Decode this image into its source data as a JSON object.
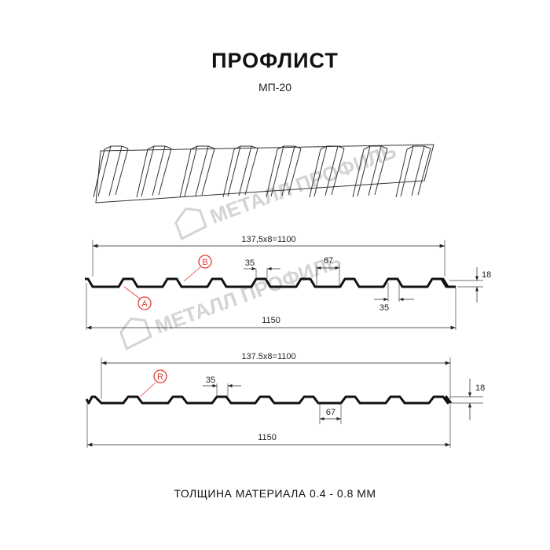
{
  "title": "ПРОФЛИСТ",
  "model": "МП-20",
  "watermark": "МЕТАЛЛ ПРОФИЛЬ",
  "profile_1": {
    "pitch_label": "137,5x8=1100",
    "total_width": "1150",
    "rib_top": "35",
    "rib_bottom": "35",
    "gap": "67",
    "height": "18",
    "callout_a": "A",
    "callout_b": "B"
  },
  "profile_2": {
    "pitch_label": "137.5x8=1100",
    "total_width": "1150",
    "rib_top": "35",
    "gap": "67",
    "height": "18",
    "callout_r": "R"
  },
  "footer": "ТОЛЩИНА МАТЕРИАЛА 0.4 - 0.8 ММ",
  "colors": {
    "profile": "#111111",
    "callout": "#e53935",
    "watermark": "#d4d4d4"
  }
}
